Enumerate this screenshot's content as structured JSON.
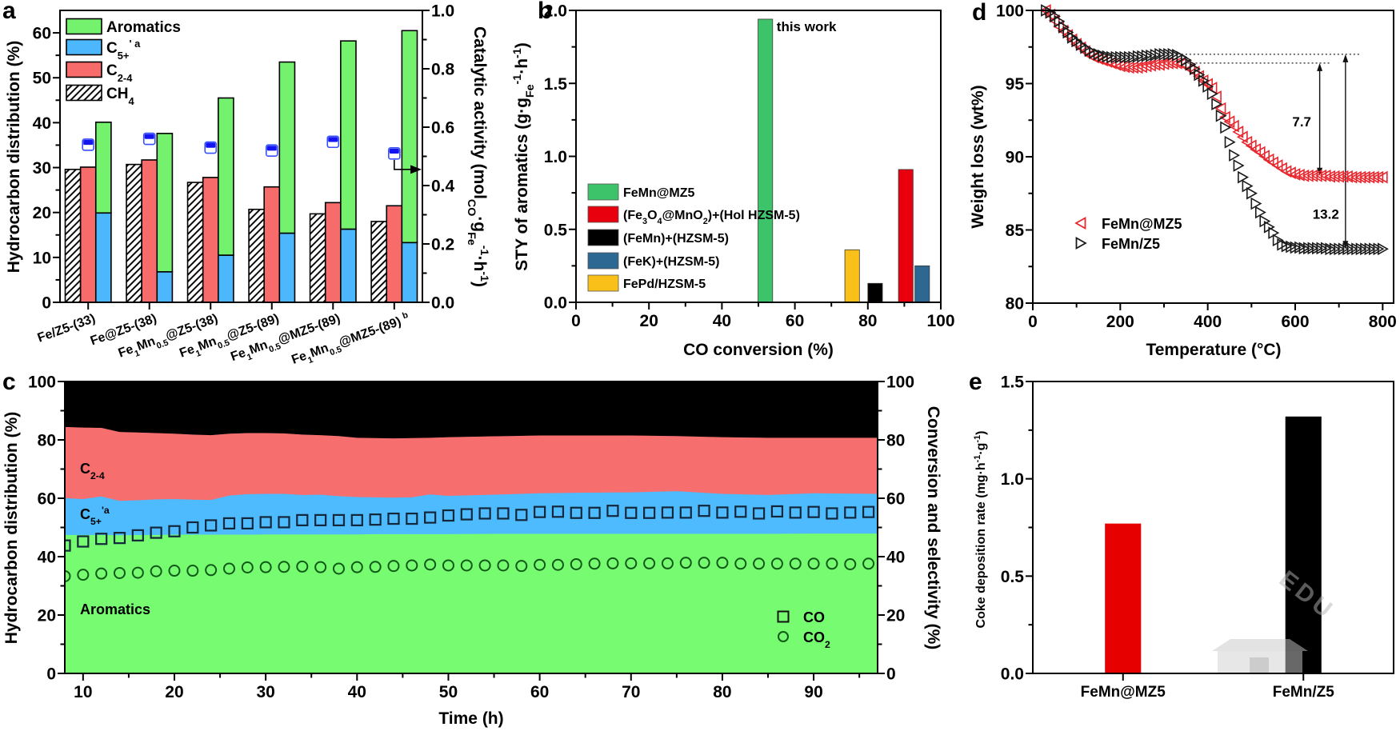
{
  "figure": {
    "panel_labels": {
      "a": "a",
      "b": "b",
      "c": "c",
      "d": "d",
      "e": "e"
    },
    "watermark": "EDU"
  },
  "chart_data": [
    {
      "panel": "a",
      "type": "bar",
      "title": "",
      "categories": [
        "Fe/Z5-(33)",
        "Fe@Z5-(38)",
        "Fe_{1}Mn_{0.5}@Z5-(38)",
        "Fe_{1}Mn_{0.5}@Z5-(89)",
        "Fe_{1}Mn_{0.5}@MZ5-(89)",
        "Fe_{1}Mn_{0.5}@MZ5-(89) ^{b}"
      ],
      "xlabel": "",
      "ylabel": "Hydrocarbon distribution (%)",
      "ylim": [
        0,
        65
      ],
      "yticks": [
        0,
        10,
        20,
        30,
        40,
        50,
        60
      ],
      "ytick_labels": [
        "0",
        "10",
        "20",
        "30",
        "40",
        "50",
        "60"
      ],
      "yminor": [
        5,
        15,
        25,
        35,
        45,
        55
      ],
      "y2label": "Catalytic activity (mol_{CO}·g_{Fe}^{-1}·h^{-1})",
      "y2lim": [
        0,
        1.0
      ],
      "y2ticks": [
        0,
        0.2,
        0.4,
        0.6,
        0.8,
        1.0
      ],
      "y2tick_labels": [
        "0.0",
        "0.2",
        "0.4",
        "0.6",
        "0.8",
        "1.0"
      ],
      "y2minor": [
        0.1,
        0.3,
        0.5,
        0.7,
        0.9
      ],
      "series": [
        {
          "id": "ch4",
          "name": "CH_{4}",
          "fill": "hatch",
          "values": [
            29.6,
            30.7,
            26.7,
            20.7,
            19.7,
            18.0
          ]
        },
        {
          "id": "c24",
          "name": "C_{2-4}",
          "color": "#f76b6b",
          "values": [
            30.1,
            31.7,
            27.8,
            25.7,
            22.2,
            21.5
          ]
        },
        {
          "id": "c5",
          "name": "C_{5+}^{' a}",
          "color": "#4cb7fc",
          "stack": "liquid",
          "values": [
            19.9,
            6.8,
            10.5,
            15.4,
            16.3,
            13.3
          ]
        },
        {
          "id": "aro",
          "name": "Aromatics",
          "color": "#74f26e",
          "stack": "liquid",
          "values": [
            20.2,
            30.8,
            35.0,
            38.1,
            41.9,
            47.2
          ]
        }
      ],
      "overlay": {
        "name": "Catalytic activity",
        "axis": "right",
        "marker": "half-filled square",
        "color": "#1414f0",
        "values": [
          0.54,
          0.56,
          0.53,
          0.52,
          0.55,
          0.51
        ]
      },
      "legend": {
        "position": "top-left"
      },
      "annotations": [
        {
          "type": "arrow",
          "from_point": 6,
          "points_to": "right-axis"
        }
      ]
    },
    {
      "panel": "b",
      "type": "bar",
      "title": "",
      "xlabel": "CO conversion (%)",
      "ylabel": "STY of aromatics (g·g_{Fe}^{-1}·h^{-1})",
      "xlim": [
        0,
        100
      ],
      "xticks": [
        0,
        20,
        40,
        60,
        80,
        100
      ],
      "xtick_labels": [
        "0",
        "20",
        "40",
        "60",
        "80",
        "100"
      ],
      "xminor": [
        10,
        30,
        50,
        70,
        90
      ],
      "ylim": [
        0,
        2.0
      ],
      "yticks": [
        0,
        0.5,
        1.0,
        1.5,
        2.0
      ],
      "ytick_labels": [
        "0.0",
        "0.5",
        "1.0",
        "1.5",
        "2.0"
      ],
      "yminor": [
        0.25,
        0.75,
        1.25,
        1.75
      ],
      "series": [
        {
          "name": "FeMn@MZ5",
          "color": "#3dc46b",
          "x": 51.9,
          "value": 1.94,
          "label": "this work"
        },
        {
          "name": "(Fe_{3}O_{4}@MnO_{2})+(Hol HZSM-5)",
          "color": "#e8000f",
          "x": 90.4,
          "value": 0.91
        },
        {
          "name": "(FeMn)+(HZSM-5)",
          "color": "#000000",
          "x": 82.0,
          "value": 0.13
        },
        {
          "name": "(FeK)+(HZSM-5)",
          "color": "#2d6893",
          "x": 94.9,
          "value": 0.25
        },
        {
          "name": "FePd/HZSM-5",
          "color": "#f8c018",
          "x": 75.7,
          "value": 0.36
        }
      ],
      "legend": {
        "position": "center-left"
      }
    },
    {
      "panel": "c",
      "type": "area",
      "title": "",
      "xlabel": "Time (h)",
      "ylabel": "Hydrocarbon distribution (%)",
      "y2label": "Conversion and selectivity (%)",
      "xlim": [
        8,
        97
      ],
      "xticks": [
        10,
        20,
        30,
        40,
        50,
        60,
        70,
        80,
        90
      ],
      "xtick_labels": [
        "10",
        "20",
        "30",
        "40",
        "50",
        "60",
        "70",
        "80",
        "90"
      ],
      "xminor": [
        15,
        25,
        35,
        45,
        55,
        65,
        75,
        85,
        95
      ],
      "ylim": [
        0,
        100
      ],
      "yticks": [
        0,
        20,
        40,
        60,
        80,
        100
      ],
      "ytick_labels": [
        "0",
        "20",
        "40",
        "60",
        "80",
        "100"
      ],
      "yminor": [
        10,
        30,
        50,
        70,
        90
      ],
      "y2lim": [
        0,
        100
      ],
      "y2ticks": [
        0,
        20,
        40,
        60,
        80,
        100
      ],
      "y2tick_labels": [
        "0",
        "20",
        "40",
        "60",
        "80",
        "100"
      ],
      "area_time": [
        8,
        10,
        12,
        14,
        16,
        18,
        20,
        22,
        24,
        26,
        28,
        30,
        32,
        34,
        36,
        38,
        40,
        42,
        44,
        46,
        48,
        50,
        55,
        60,
        65,
        70,
        75,
        80,
        85,
        90,
        97
      ],
      "areas": [
        {
          "name": "Aromatics",
          "color": "#76fb71",
          "label_color": "#1a1a1a",
          "values": [
            47.5,
            47.5,
            47.5,
            47.4,
            47.5,
            47.5,
            47.6,
            47.6,
            47.6,
            47.6,
            47.6,
            47.7,
            47.7,
            47.7,
            47.7,
            47.7,
            47.7,
            47.8,
            47.8,
            47.8,
            47.8,
            47.8,
            47.9,
            47.9,
            47.9,
            47.9,
            47.9,
            47.9,
            47.9,
            48.0,
            48.0
          ]
        },
        {
          "name": "C_{5+}^{'a}",
          "color": "#4dbbfd",
          "label_color": "#1a1a1a",
          "values": [
            12.6,
            12.3,
            13.2,
            11.8,
            11.9,
            12.2,
            12.2,
            12.0,
            11.9,
            13.4,
            13.9,
            13.9,
            13.9,
            13.5,
            13.6,
            13.1,
            12.8,
            12.6,
            12.5,
            12.6,
            13.6,
            13.1,
            13.4,
            13.9,
            14.1,
            14.2,
            14.6,
            13.7,
            13.3,
            13.8,
            13.6
          ]
        },
        {
          "name": "C_{2-4}",
          "color": "#f76e6e",
          "label_color": "#1a1a1a",
          "values": [
            24.4,
            24.5,
            23.5,
            23.6,
            23.2,
            22.7,
            22.4,
            22.3,
            22.2,
            21.2,
            20.9,
            20.8,
            20.7,
            20.7,
            20.4,
            20.6,
            20.3,
            20.3,
            20.3,
            20.3,
            19.4,
            20.1,
            20.0,
            19.8,
            19.6,
            19.5,
            18.9,
            19.4,
            19.6,
            19.0,
            19.2
          ]
        },
        {
          "name": "CH_{4}",
          "color": "#000000",
          "label_color": "#ffffff",
          "values": [
            15.5,
            15.7,
            15.8,
            17.2,
            17.4,
            17.6,
            17.8,
            18.1,
            18.3,
            17.8,
            17.6,
            17.6,
            17.7,
            18.1,
            18.3,
            18.6,
            19.2,
            19.3,
            19.4,
            19.3,
            19.2,
            19.0,
            18.7,
            18.4,
            18.4,
            18.4,
            18.6,
            19.0,
            19.2,
            19.2,
            19.2
          ]
        }
      ],
      "scatter_time": [
        8,
        10,
        12,
        14,
        16,
        18,
        20,
        22,
        24,
        26,
        28,
        30,
        32,
        34,
        36,
        38,
        40,
        42,
        44,
        46,
        48,
        50,
        52,
        54,
        56,
        58,
        60,
        62,
        64,
        66,
        68,
        70,
        72,
        74,
        76,
        78,
        80,
        82,
        84,
        86,
        88,
        90,
        92,
        94,
        96
      ],
      "scatter": [
        {
          "name": "CO",
          "marker": "square",
          "axis": "right",
          "color": "#14263a",
          "values": [
            43.8,
            45.2,
            46.1,
            46.4,
            47.3,
            48.2,
            48.7,
            50.0,
            50.7,
            51.4,
            51.4,
            51.8,
            51.8,
            52.5,
            52.5,
            52.5,
            52.5,
            52.7,
            53.0,
            53.0,
            53.4,
            54.1,
            54.5,
            54.8,
            54.8,
            54.3,
            55.3,
            55.4,
            55.0,
            55.0,
            55.7,
            55.0,
            55.0,
            55.1,
            55.1,
            55.7,
            55.1,
            55.4,
            54.8,
            55.5,
            55.1,
            55.3,
            54.8,
            55.1,
            55.3
          ]
        },
        {
          "name": "CO_{2}",
          "marker": "circle",
          "axis": "right",
          "color": "#105a18",
          "values": [
            33.3,
            33.8,
            34.2,
            34.4,
            34.5,
            35.0,
            35.2,
            35.2,
            35.4,
            35.9,
            36.3,
            36.4,
            36.5,
            36.6,
            36.4,
            35.9,
            36.4,
            36.5,
            36.8,
            37.0,
            37.3,
            37.0,
            37.0,
            37.0,
            37.0,
            36.8,
            37.2,
            37.2,
            37.4,
            37.6,
            37.7,
            37.7,
            37.7,
            37.7,
            37.9,
            37.9,
            37.9,
            37.6,
            37.6,
            37.6,
            37.6,
            37.6,
            37.6,
            37.4,
            37.6
          ]
        }
      ],
      "legend": {
        "position": "bottom-right"
      }
    },
    {
      "panel": "d",
      "type": "scatter",
      "title": "",
      "xlabel": "Temperature (°C)",
      "ylabel": "Weight loss (wt%)",
      "xlim": [
        0,
        825
      ],
      "xticks": [
        0,
        200,
        400,
        600,
        800
      ],
      "xtick_labels": [
        "0",
        "200",
        "400",
        "600",
        "800"
      ],
      "xminor": [
        100,
        300,
        500,
        700
      ],
      "ylim": [
        80,
        100
      ],
      "yticks": [
        80,
        85,
        90,
        95,
        100
      ],
      "ytick_labels": [
        "80",
        "85",
        "90",
        "95",
        "100"
      ],
      "yminor": [
        82.5,
        87.5,
        92.5,
        97.5
      ],
      "temperature": [
        30,
        40,
        50,
        60,
        70,
        80,
        90,
        100,
        110,
        120,
        130,
        140,
        150,
        160,
        170,
        180,
        190,
        200,
        210,
        220,
        230,
        240,
        250,
        260,
        270,
        280,
        290,
        300,
        310,
        320,
        330,
        340,
        350,
        360,
        370,
        380,
        390,
        400,
        410,
        420,
        430,
        440,
        450,
        460,
        470,
        480,
        490,
        500,
        510,
        520,
        530,
        540,
        550,
        560,
        570,
        580,
        590,
        600,
        610,
        620,
        630,
        640,
        650,
        660,
        670,
        680,
        690,
        700,
        710,
        720,
        730,
        740,
        750,
        760,
        770,
        780,
        790,
        800
      ],
      "series": [
        {
          "name": "FeMn@MZ5",
          "marker": "left-triangle",
          "color": "#e8262d",
          "values": [
            100.0,
            99.7,
            99.3,
            98.9,
            98.6,
            98.3,
            98.0,
            97.7,
            97.45,
            97.2,
            96.95,
            96.8,
            96.7,
            96.6,
            96.5,
            96.4,
            96.3,
            96.2,
            96.15,
            96.1,
            96.1,
            96.1,
            96.15,
            96.2,
            96.25,
            96.3,
            96.3,
            96.35,
            96.4,
            96.4,
            96.4,
            96.35,
            96.25,
            96.0,
            95.8,
            95.5,
            95.2,
            94.95,
            94.7,
            94.1,
            93.3,
            92.7,
            92.4,
            92.1,
            91.7,
            91.35,
            91.0,
            90.75,
            90.5,
            90.3,
            90.05,
            89.8,
            89.6,
            89.4,
            89.2,
            89.0,
            88.9,
            88.8,
            88.75,
            88.7,
            88.7,
            88.7,
            88.7,
            88.7,
            88.7,
            88.65,
            88.65,
            88.65,
            88.65,
            88.65,
            88.6,
            88.6,
            88.6,
            88.6,
            88.6,
            88.6,
            88.6,
            88.6
          ]
        },
        {
          "name": "FeMn/Z5",
          "marker": "right-triangle",
          "color": "#1a1a1a",
          "values": [
            100.0,
            99.85,
            99.6,
            99.25,
            98.85,
            98.5,
            98.15,
            97.9,
            97.65,
            97.45,
            97.25,
            97.1,
            97.0,
            96.9,
            96.85,
            96.8,
            96.8,
            96.8,
            96.8,
            96.8,
            96.8,
            96.85,
            96.85,
            96.9,
            96.9,
            96.95,
            97.0,
            97.0,
            97.0,
            97.0,
            96.95,
            96.8,
            96.6,
            96.3,
            96.0,
            95.6,
            95.2,
            94.8,
            94.3,
            93.6,
            92.8,
            92.0,
            91.0,
            90.1,
            89.4,
            88.6,
            88.0,
            87.5,
            86.8,
            86.2,
            85.6,
            85.2,
            84.8,
            84.3,
            84.0,
            83.9,
            83.85,
            83.8,
            83.8,
            83.75,
            83.75,
            83.75,
            83.75,
            83.75,
            83.75,
            83.7,
            83.7,
            83.7,
            83.7,
            83.7,
            83.7,
            83.7,
            83.7,
            83.7,
            83.7,
            83.7,
            83.7,
            83.7
          ]
        }
      ],
      "annotations": [
        {
          "label": "7.7",
          "from": 96.4,
          "to": 88.7
        },
        {
          "label": "13.2",
          "from": 97.0,
          "to": 83.7
        }
      ],
      "legend": {
        "position": "lower-left"
      }
    },
    {
      "panel": "e",
      "type": "bar",
      "title": "",
      "xlabel": "",
      "ylabel": "Coke deposition rate (mg·h^{-1}·g^{-1})",
      "categories": [
        "FeMn@MZ5",
        "FeMn/Z5"
      ],
      "values": [
        0.77,
        1.32
      ],
      "colors": [
        "#e60000",
        "#000000"
      ],
      "ylim": [
        0,
        1.5
      ],
      "yticks": [
        0,
        0.5,
        1.0,
        1.5
      ],
      "ytick_labels": [
        "0.0",
        "0.5",
        "1.0",
        "1.5"
      ],
      "yminor": [
        0.25,
        0.75,
        1.25
      ]
    }
  ]
}
